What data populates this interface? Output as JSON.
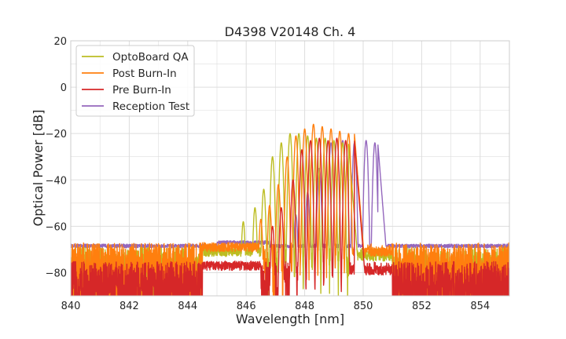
{
  "chart_data": {
    "type": "line",
    "title": "D4398 V20148 Ch. 4",
    "xlabel": "Wavelength [nm]",
    "ylabel": "Optical Power [dB]",
    "xlim": [
      840,
      855
    ],
    "ylim": [
      -90,
      20
    ],
    "xticks": [
      "840",
      "842",
      "844",
      "846",
      "848",
      "850",
      "852",
      "854"
    ],
    "yticks": [
      "20",
      "0",
      "−20",
      "−40",
      "−60",
      "−80"
    ],
    "grid": true,
    "legend_position": "top-left",
    "series": [
      {
        "name": "OptoBoard QA",
        "color": "#bcbd22",
        "noise_floor": -79,
        "peaks": [
          [
            845.9,
            -58
          ],
          [
            846.3,
            -52
          ],
          [
            846.6,
            -44
          ],
          [
            846.9,
            -30
          ],
          [
            847.2,
            -24
          ],
          [
            847.5,
            -20
          ],
          [
            847.8,
            -20
          ],
          [
            848.1,
            -21
          ],
          [
            848.4,
            -22
          ],
          [
            848.7,
            -22
          ],
          [
            849.0,
            -23
          ],
          [
            849.3,
            -24
          ]
        ],
        "band_end": 849.5
      },
      {
        "name": "Post Burn-In",
        "color": "#ff7f0e",
        "noise_floor": -77,
        "peaks": [
          [
            846.5,
            -57
          ],
          [
            846.8,
            -51
          ],
          [
            847.1,
            -42
          ],
          [
            847.4,
            -30
          ],
          [
            847.7,
            -21
          ],
          [
            848.0,
            -18
          ],
          [
            848.3,
            -16
          ],
          [
            848.6,
            -17
          ],
          [
            848.9,
            -18
          ],
          [
            849.2,
            -19
          ],
          [
            849.5,
            -20
          ]
        ],
        "band_end": 849.7
      },
      {
        "name": "Pre Burn-In",
        "color": "#d62728",
        "noise_floor": -85,
        "peaks": [
          [
            846.9,
            -60
          ],
          [
            847.2,
            -52
          ],
          [
            847.6,
            -40
          ],
          [
            847.9,
            -27
          ],
          [
            848.2,
            -23
          ],
          [
            848.5,
            -22
          ],
          [
            848.8,
            -23
          ],
          [
            849.1,
            -22
          ],
          [
            849.4,
            -23
          ]
        ],
        "band_end": 849.7
      },
      {
        "name": "Reception Test",
        "color": "#9467bd",
        "noise_floor": -68.5,
        "peaks": [
          [
            847.7,
            -55
          ],
          [
            848.1,
            -45
          ],
          [
            848.5,
            -35
          ],
          [
            848.9,
            -24
          ],
          [
            849.3,
            -23
          ],
          [
            849.7,
            -24
          ],
          [
            850.1,
            -23
          ],
          [
            850.4,
            -24
          ]
        ],
        "band_end": 850.5
      }
    ]
  }
}
